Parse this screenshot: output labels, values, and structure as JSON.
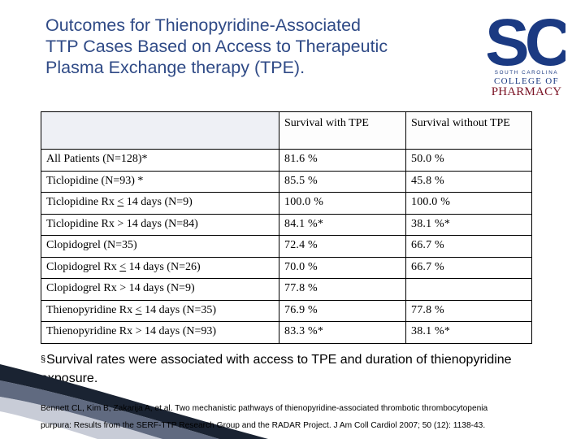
{
  "title": {
    "lines": [
      "Outcomes for Thienopyridine-Associated",
      "TTP Cases Based on Access to Therapeutic",
      "Plasma Exchange therapy (TPE)."
    ]
  },
  "logo": {
    "mark": "SC",
    "line1": "SOUTH CAROLINA",
    "line2": "COLLEGE OF",
    "line3": "PHARMACY"
  },
  "table": {
    "headers": [
      "",
      "Survival with TPE",
      "Survival without TPE"
    ],
    "rows": [
      {
        "label": "All Patients (N=128)*",
        "with_tpe": "81.6 %",
        "without_tpe": "50.0 %"
      },
      {
        "label": "Ticlopidine (N=93)  *",
        "with_tpe": "85.5 %",
        "without_tpe": "45.8 %"
      },
      {
        "label_pre": "Ticlopidine Rx ",
        "label_sym": "<",
        "label_post": " 14 days (N=9)",
        "with_tpe": "100.0 %",
        "without_tpe": "100.0 %"
      },
      {
        "label": "Ticlopidine Rx > 14 days (N=84)",
        "with_tpe": "84.1 %*",
        "without_tpe": "38.1 %*"
      },
      {
        "label": "Clopidogrel (N=35)",
        "with_tpe": "72.4 %",
        "without_tpe": "66.7 %"
      },
      {
        "label_pre": "Clopidogrel Rx ",
        "label_sym": "<",
        "label_post": " 14 days (N=26)",
        "with_tpe": "70.0 %",
        "without_tpe": "66.7 %"
      },
      {
        "label": "Clopidogrel Rx > 14 days (N=9)",
        "with_tpe": "77.8 %",
        "without_tpe": ""
      },
      {
        "label_pre": "Thienopyridine Rx ",
        "label_sym": "<",
        "label_post": " 14 days (N=35)",
        "with_tpe": "76.9 %",
        "without_tpe": "77.8 %"
      },
      {
        "label": "Thienopyridine Rx > 14 days (N=93)",
        "with_tpe": "83.3 %*",
        "without_tpe": "38.1 %*"
      }
    ]
  },
  "note": {
    "bullet": "§",
    "text": "Survival rates were associated with access to TPE and duration of thienopyridine exposure."
  },
  "reference": {
    "line1": "Bennett CL, Kim B, Zakarija A, et al. Two mechanistic pathways of thienopyridine-associated thrombotic thrombocytopenia",
    "line2": "purpura: Results from the SERF-TTP Research Group and the RADAR Project. J Am Coll Cardiol 2007; 50 (12): 1138-43."
  },
  "colors": {
    "title": "#2f4a86",
    "logo_blue": "#1b3a82",
    "logo_red": "#7b1426"
  }
}
